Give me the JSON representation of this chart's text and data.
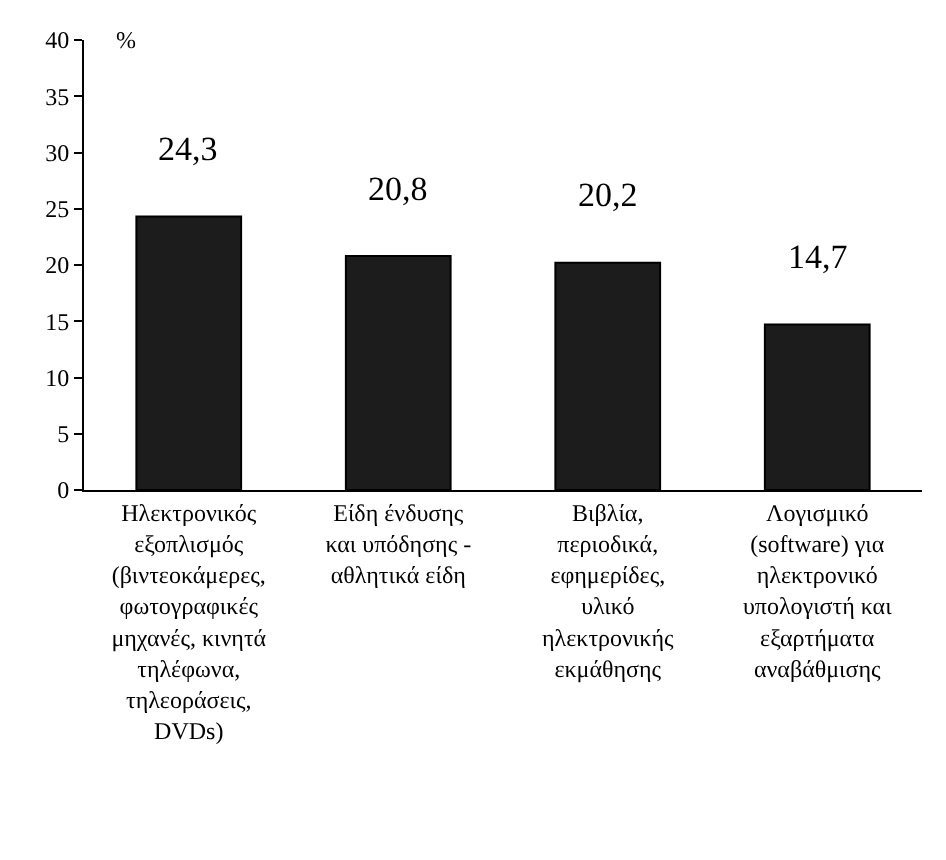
{
  "chart_data": {
    "type": "bar",
    "ylabel": "%",
    "categories": [
      "Ηλεκτρονικός εξοπλισμός (βιντεοκάμερες, φωτογραφικές μηχανές, κινητά τηλέφωνα, τηλεοράσεις, DVDs)",
      "Είδη ένδυσης και υπόδησης - αθλητικά είδη",
      "Βιβλία, περιοδικά, εφημερίδες, υλικό ηλεκτρονικής εκμάθησης",
      "Λογισμικό (software) για ηλεκτρονικό υπολογιστή και εξαρτήματα αναβάθμισης"
    ],
    "values": [
      24.3,
      20.8,
      20.2,
      14.7
    ],
    "value_labels": [
      "24,3",
      "20,8",
      "20,2",
      "14,7"
    ],
    "color": "#1c1c1c",
    "ylim": [
      0,
      40
    ],
    "yticks": [
      0,
      5,
      10,
      15,
      20,
      25,
      30,
      35,
      40
    ],
    "grid": false
  }
}
